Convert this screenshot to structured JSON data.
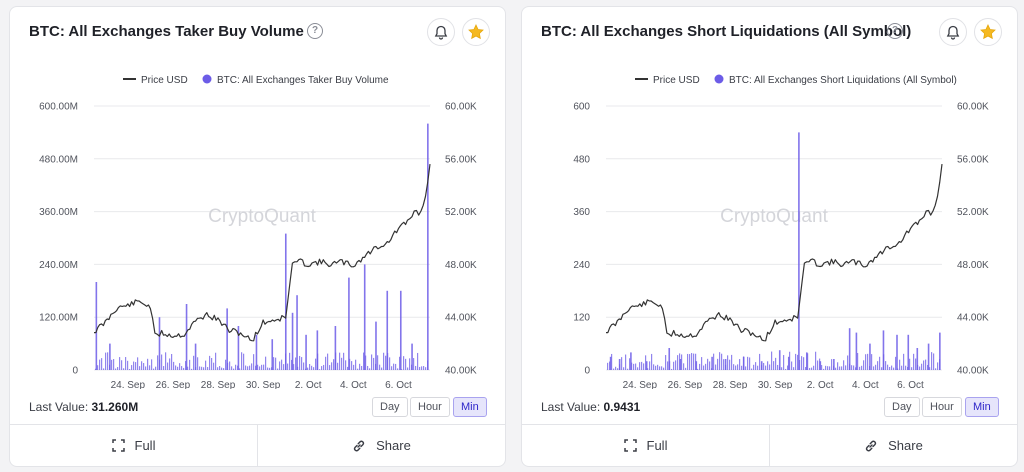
{
  "colors": {
    "price": "#333333",
    "bars": "#6c5ce7",
    "grid": "#e8e9ec"
  },
  "icons": {
    "help": "help-circle-icon",
    "bell": "bell-icon",
    "star": "star-icon",
    "fullscreen": "fullscreen-icon",
    "share": "share-icon"
  },
  "cards": [
    {
      "title": "BTC: All Exchanges Taker Buy Volume",
      "help_glyph": "?",
      "legend": {
        "price_label": "Price USD",
        "metric_label": "BTC: All Exchanges Taker Buy Volume"
      },
      "watermark": "CryptoQuant",
      "last_value_label": "Last Value:",
      "last_value": "31.260M",
      "resolutions": [
        "Day",
        "Hour",
        "Min"
      ],
      "active_resolution": "Min",
      "footer": {
        "full_label": "Full",
        "share_label": "Share"
      },
      "chart_data": {
        "type": "bar",
        "x_ticks": [
          "24. Sep",
          "26. Sep",
          "28. Sep",
          "30. Sep",
          "2. Oct",
          "4. Oct",
          "6. Oct"
        ],
        "y_left_ticks": [
          "600.00M",
          "480.00M",
          "360.00M",
          "240.00M",
          "120.00M",
          "0"
        ],
        "y_right_ticks": [
          "60.00K",
          "56.00K",
          "52.00K",
          "48.00K",
          "44.00K",
          "40.00K"
        ],
        "ylim_left": [
          0,
          600000000
        ],
        "ylim_right": [
          40000,
          60000
        ],
        "x_range_days": [
          22.5,
          7.4
        ],
        "series": [
          {
            "name": "Price USD",
            "axis": "right",
            "points": [
              [
                22.5,
                42900
              ],
              [
                23.0,
                43600
              ],
              [
                23.5,
                44700
              ],
              [
                24.0,
                44900
              ],
              [
                24.5,
                45200
              ],
              [
                25.0,
                44800
              ],
              [
                25.2,
                42600
              ],
              [
                25.5,
                42800
              ],
              [
                26.0,
                42600
              ],
              [
                26.5,
                42700
              ],
              [
                27.0,
                43700
              ],
              [
                27.5,
                44200
              ],
              [
                28.0,
                43800
              ],
              [
                28.5,
                43000
              ],
              [
                29.0,
                42800
              ],
              [
                29.5,
                42200
              ],
              [
                30.0,
                43600
              ],
              [
                30.5,
                43800
              ],
              [
                1.0,
                44000
              ],
              [
                1.3,
                48000
              ],
              [
                1.5,
                48300
              ],
              [
                2.0,
                48000
              ],
              [
                2.5,
                48200
              ],
              [
                3.0,
                48000
              ],
              [
                3.5,
                48200
              ],
              [
                4.0,
                47900
              ],
              [
                4.5,
                48600
              ],
              [
                5.0,
                49300
              ],
              [
                5.5,
                49600
              ],
              [
                6.0,
                50700
              ],
              [
                6.4,
                51200
              ],
              [
                6.7,
                52000
              ],
              [
                7.0,
                51900
              ],
              [
                7.2,
                53200
              ],
              [
                7.4,
                55600
              ]
            ]
          },
          {
            "name": "BTC: All Exchanges Taker Buy Volume",
            "axis": "left",
            "spikes": [
              [
                22.6,
                200000000
              ],
              [
                23.2,
                60000000
              ],
              [
                25.4,
                120000000
              ],
              [
                26.6,
                150000000
              ],
              [
                27.0,
                60000000
              ],
              [
                28.4,
                140000000
              ],
              [
                28.9,
                100000000
              ],
              [
                29.7,
                80000000
              ],
              [
                30.4,
                70000000
              ],
              [
                1.0,
                310000000
              ],
              [
                1.3,
                130000000
              ],
              [
                1.5,
                170000000
              ],
              [
                1.9,
                80000000
              ],
              [
                2.4,
                90000000
              ],
              [
                3.2,
                100000000
              ],
              [
                3.8,
                210000000
              ],
              [
                4.5,
                240000000
              ],
              [
                5.0,
                110000000
              ],
              [
                5.5,
                180000000
              ],
              [
                6.1,
                180000000
              ],
              [
                6.6,
                60000000
              ],
              [
                7.3,
                560000000
              ]
            ]
          }
        ]
      }
    },
    {
      "title": "BTC: All Exchanges Short Liquidations (All Symbol)",
      "help_glyph": "?",
      "legend": {
        "price_label": "Price USD",
        "metric_label": "BTC: All Exchanges Short Liquidations (All Symbol)"
      },
      "watermark": "CryptoQuant",
      "last_value_label": "Last Value:",
      "last_value": "0.9431",
      "resolutions": [
        "Day",
        "Hour",
        "Min"
      ],
      "active_resolution": "Min",
      "footer": {
        "full_label": "Full",
        "share_label": "Share"
      },
      "chart_data": {
        "type": "bar",
        "x_ticks": [
          "24. Sep",
          "26. Sep",
          "28. Sep",
          "30. Sep",
          "2. Oct",
          "4. Oct",
          "6. Oct"
        ],
        "y_left_ticks": [
          "600",
          "480",
          "360",
          "240",
          "120",
          "0"
        ],
        "y_right_ticks": [
          "60.00K",
          "56.00K",
          "52.00K",
          "48.00K",
          "44.00K",
          "40.00K"
        ],
        "ylim_left": [
          0,
          600
        ],
        "ylim_right": [
          40000,
          60000
        ],
        "x_range_days": [
          22.5,
          7.4
        ],
        "series": [
          {
            "name": "Price USD",
            "axis": "right",
            "points": [
              [
                22.5,
                42900
              ],
              [
                23.0,
                43600
              ],
              [
                23.5,
                44700
              ],
              [
                24.0,
                44900
              ],
              [
                24.5,
                45200
              ],
              [
                25.0,
                44800
              ],
              [
                25.2,
                42600
              ],
              [
                25.5,
                42800
              ],
              [
                26.0,
                42600
              ],
              [
                26.5,
                42700
              ],
              [
                27.0,
                43700
              ],
              [
                27.5,
                44200
              ],
              [
                28.0,
                43800
              ],
              [
                28.5,
                43000
              ],
              [
                29.0,
                42800
              ],
              [
                29.5,
                42200
              ],
              [
                30.0,
                43600
              ],
              [
                30.5,
                43800
              ],
              [
                1.0,
                44000
              ],
              [
                1.3,
                48000
              ],
              [
                1.5,
                48300
              ],
              [
                2.0,
                48000
              ],
              [
                2.5,
                48200
              ],
              [
                3.0,
                48000
              ],
              [
                3.5,
                48200
              ],
              [
                4.0,
                47900
              ],
              [
                4.5,
                48600
              ],
              [
                5.0,
                49300
              ],
              [
                5.5,
                49600
              ],
              [
                6.0,
                50700
              ],
              [
                6.4,
                51200
              ],
              [
                6.7,
                52000
              ],
              [
                7.0,
                51900
              ],
              [
                7.2,
                53200
              ],
              [
                7.4,
                55600
              ]
            ]
          },
          {
            "name": "BTC: All Exchanges Short Liquidations (All Symbol)",
            "axis": "left",
            "spikes": [
              [
                22.7,
                30
              ],
              [
                23.1,
                25
              ],
              [
                23.6,
                40
              ],
              [
                24.3,
                20
              ],
              [
                25.3,
                50
              ],
              [
                25.8,
                25
              ],
              [
                26.5,
                20
              ],
              [
                27.2,
                30
              ],
              [
                27.8,
                25
              ],
              [
                28.6,
                30
              ],
              [
                29.4,
                20
              ],
              [
                30.2,
                45
              ],
              [
                30.6,
                30
              ],
              [
                1.05,
                540
              ],
              [
                1.4,
                40
              ],
              [
                2.0,
                20
              ],
              [
                2.6,
                25
              ],
              [
                3.3,
                95
              ],
              [
                3.6,
                85
              ],
              [
                4.2,
                60
              ],
              [
                4.8,
                90
              ],
              [
                5.4,
                80
              ],
              [
                5.9,
                80
              ],
              [
                6.3,
                50
              ],
              [
                6.8,
                60
              ],
              [
                7.3,
                85
              ]
            ]
          }
        ]
      }
    }
  ]
}
